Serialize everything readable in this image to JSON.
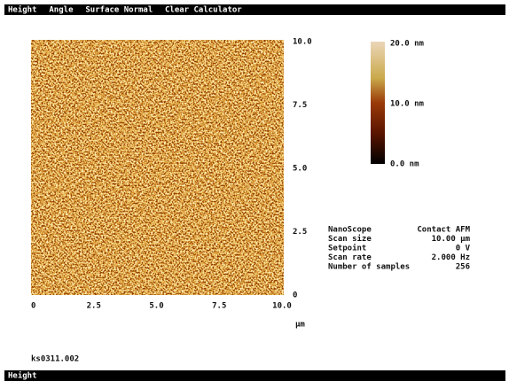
{
  "menu": {
    "items": [
      "Height",
      "Angle",
      "Surface Normal",
      "Clear Calculator"
    ]
  },
  "image": {
    "x_axis": {
      "ticks": [
        "0",
        "2.5",
        "5.0",
        "7.5",
        "10.0"
      ],
      "unit": "µm"
    },
    "y_axis": {
      "ticks": [
        "10.0",
        "7.5",
        "5.0",
        "2.5",
        "0"
      ]
    }
  },
  "color_bar": {
    "labels": [
      "20.0 nm",
      "10.0 nm",
      "0.0 nm"
    ]
  },
  "info": {
    "rows": [
      [
        "NanoScope",
        "Contact AFM"
      ],
      [
        "Scan size",
        "10.00 µm"
      ],
      [
        "Setpoint",
        "0 V"
      ],
      [
        "Scan rate",
        "2.000 Hz"
      ],
      [
        "Number of samples",
        "256"
      ]
    ]
  },
  "file_name": "ks0311.002",
  "status_bar": {
    "label": "Height"
  }
}
